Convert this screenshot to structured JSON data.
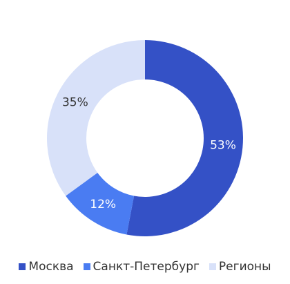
{
  "chart_data": {
    "type": "donut",
    "categories": [
      "Москва",
      "Санкт-Петербург",
      "Регионы"
    ],
    "values": [
      53,
      12,
      35
    ],
    "value_labels": [
      "53%",
      "12%",
      "35%"
    ],
    "colors": [
      "#3451c6",
      "#4a7cf2",
      "#d8e1f9"
    ]
  }
}
